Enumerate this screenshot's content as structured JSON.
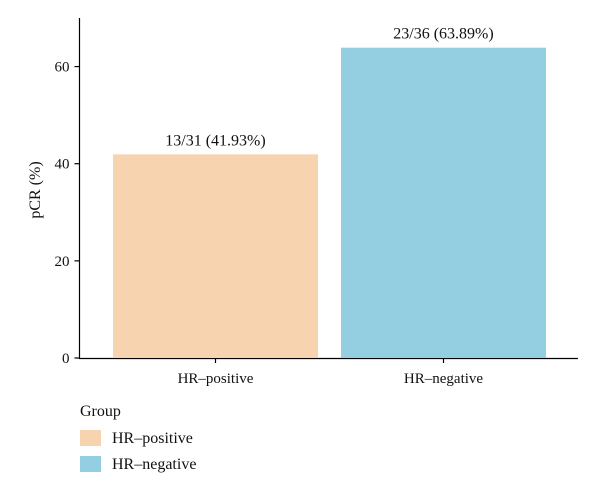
{
  "chart_data": {
    "type": "bar",
    "categories": [
      "HR–positive",
      "HR–negative"
    ],
    "values": [
      41.93,
      63.89
    ],
    "data_labels": [
      "13/31 (41.93%)",
      "23/36 (63.89%)"
    ],
    "colors": [
      "#f8d3b0",
      "#93cfe1"
    ],
    "title": "",
    "xlabel": "",
    "ylabel": "pCR (%)",
    "ylim": [
      0,
      70
    ],
    "yticks": [
      0,
      20,
      40,
      60
    ],
    "grid": false,
    "legend": {
      "title": "Group",
      "placement": "bottom-left",
      "entries": [
        "HR–positive",
        "HR–negative"
      ]
    }
  }
}
